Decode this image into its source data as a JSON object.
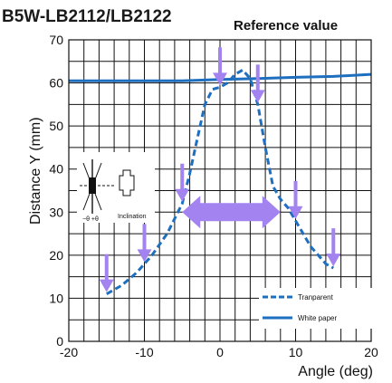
{
  "chart_data": {
    "type": "line",
    "title": "B5W-LB2112/LB2122",
    "annotation": "Reference value",
    "xlabel": "Angle (deg)",
    "ylabel": "Distance Y (mm)",
    "xlim": [
      -20,
      20
    ],
    "ylim": [
      0,
      70
    ],
    "xticks": [
      "-20",
      "-10",
      "0",
      "10",
      "20"
    ],
    "xtick_values": [
      -20,
      -10,
      0,
      10,
      20
    ],
    "yticks": [
      "0",
      "10",
      "20",
      "30",
      "40",
      "50",
      "60",
      "70"
    ],
    "ytick_values": [
      0,
      10,
      20,
      30,
      40,
      50,
      60,
      70
    ],
    "grid": true,
    "legend_position": "bottom-right",
    "series": [
      {
        "name": "Tranparent",
        "style": "dashed",
        "color": "#1e6fbf",
        "x": [
          -15,
          -13,
          -11,
          -9,
          -7,
          -5,
          -4,
          -3,
          -2,
          -1,
          0,
          1,
          2,
          3,
          4,
          5,
          6,
          7,
          8,
          9,
          10,
          12,
          14,
          15
        ],
        "y": [
          11,
          13,
          16,
          20,
          25,
          32,
          39,
          47,
          55,
          58.5,
          59,
          60,
          62,
          63,
          61,
          55,
          45,
          36,
          33,
          31,
          28,
          22,
          18,
          17
        ]
      },
      {
        "name": "White paper",
        "style": "solid",
        "color": "#1e6fbf",
        "x": [
          -20,
          -15,
          -10,
          -5,
          0,
          5,
          10,
          15,
          20
        ],
        "y": [
          60.5,
          60.5,
          60.5,
          60.5,
          60.8,
          61,
          61.3,
          61.5,
          62
        ]
      }
    ],
    "arrows_down_at_x": [
      -15,
      -10,
      -5,
      0,
      5,
      10,
      15
    ],
    "double_arrow_x_range": [
      -5,
      8
    ],
    "double_arrow_y": 30
  },
  "colors": {
    "series": "#1e6fbf",
    "arrow": "#a383f0",
    "grid": "#111111"
  },
  "inset": {
    "label": "Inclination",
    "theta_label": "−θ  +θ"
  }
}
